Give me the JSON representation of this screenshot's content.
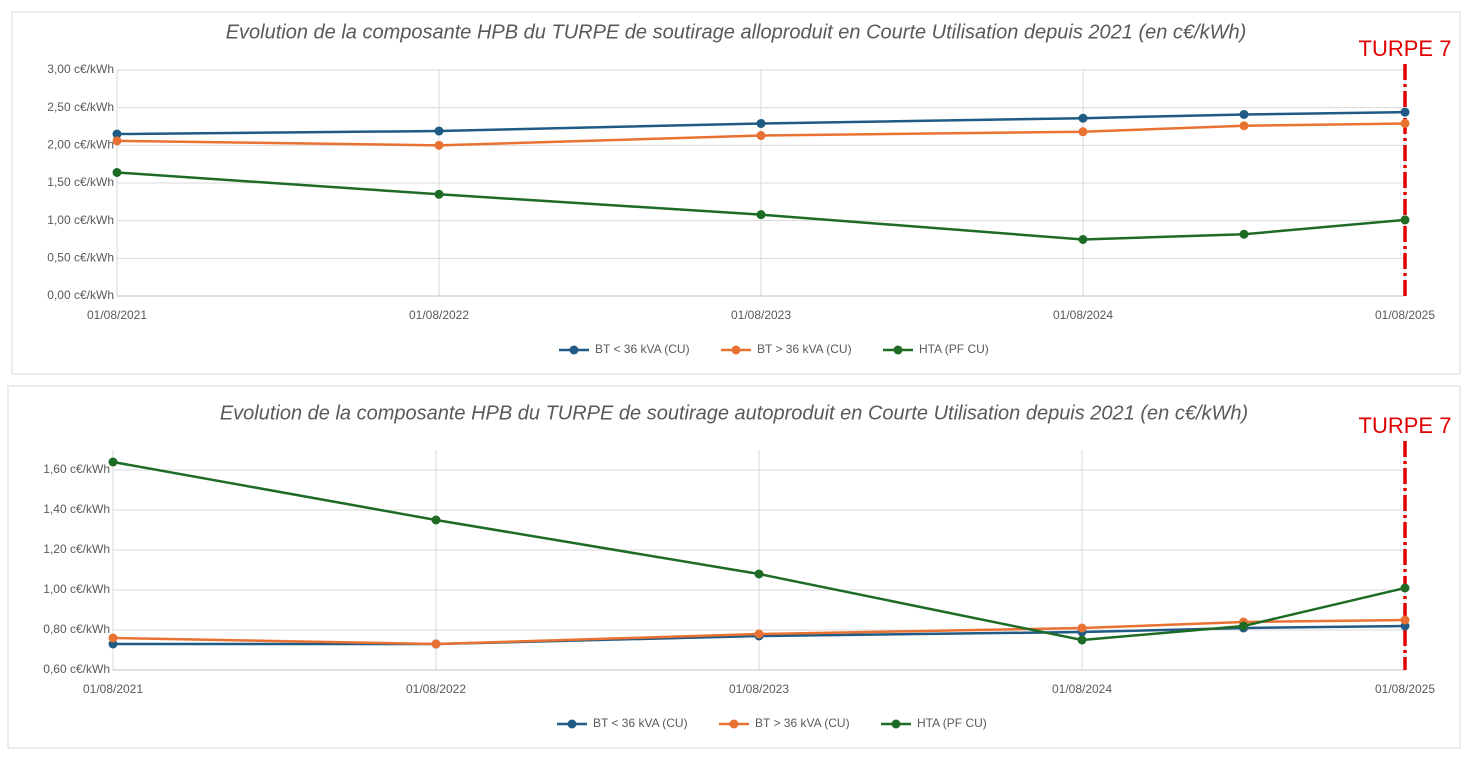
{
  "chart_data": [
    {
      "type": "line",
      "title": "Evolution de la composante HPB du TURPE de soutirage alloproduit en Courte Utilisation depuis 2021 (en c€/kWh)",
      "annotation": "TURPE 7",
      "annotation_color": "#e00000",
      "categories": [
        "01/08/2021",
        "01/08/2022",
        "01/08/2023",
        "01/08/2024",
        null,
        "01/08/2025"
      ],
      "series": [
        {
          "name": "BT < 36 kVA (CU)",
          "color": "#1f5b84",
          "values": [
            2.15,
            2.19,
            2.29,
            2.36,
            2.41,
            2.44
          ]
        },
        {
          "name": "BT > 36 kVA (CU)",
          "color": "#e97132",
          "values": [
            2.06,
            2.0,
            2.13,
            2.18,
            2.26,
            2.29
          ]
        },
        {
          "name": "HTA (PF CU)",
          "color": "#1e6b26",
          "values": [
            1.64,
            1.35,
            1.08,
            0.75,
            0.82,
            1.01
          ]
        }
      ],
      "ylim": [
        0,
        3
      ],
      "yticks": [
        {
          "value": 0,
          "label": "0,00 c€/kWh"
        },
        {
          "value": 0.5,
          "label": "0,50 c€/kWh"
        },
        {
          "value": 1,
          "label": "1,00 c€/kWh"
        },
        {
          "value": 1.5,
          "label": "1,50 c€/kWh"
        },
        {
          "value": 2,
          "label": "2,00 c€/kWh"
        },
        {
          "value": 2.5,
          "label": "2,50 c€/kWh"
        },
        {
          "value": 3,
          "label": "3,00 c€/kWh"
        }
      ],
      "grid": true,
      "legend": "bottom"
    },
    {
      "type": "line",
      "title": "Evolution de la composante HPB du TURPE de soutirage autoproduit en Courte Utilisation depuis 2021 (en c€/kWh)",
      "annotation": "TURPE 7",
      "annotation_color": "#e00000",
      "categories": [
        "01/08/2021",
        "01/08/2022",
        "01/08/2023",
        "01/08/2024",
        null,
        "01/08/2025"
      ],
      "series": [
        {
          "name": "BT < 36 kVA (CU)",
          "color": "#1f5b84",
          "values": [
            0.73,
            0.73,
            0.77,
            0.79,
            0.81,
            0.82
          ]
        },
        {
          "name": "BT > 36 kVA (CU)",
          "color": "#e97132",
          "values": [
            0.76,
            0.73,
            0.78,
            0.81,
            0.84,
            0.85
          ]
        },
        {
          "name": "HTA (PF CU)",
          "color": "#1e6b26",
          "values": [
            1.64,
            1.35,
            1.08,
            0.75,
            0.82,
            1.01
          ]
        }
      ],
      "ylim": [
        0.6,
        1.7
      ],
      "yticks": [
        {
          "value": 0.6,
          "label": "0,60 c€/kWh"
        },
        {
          "value": 0.8,
          "label": "0,80 c€/kWh"
        },
        {
          "value": 1,
          "label": "1,00 c€/kWh"
        },
        {
          "value": 1.2,
          "label": "1,20 c€/kWh"
        },
        {
          "value": 1.4,
          "label": "1,40 c€/kWh"
        },
        {
          "value": 1.6,
          "label": "1,60 c€/kWh"
        }
      ],
      "grid": true,
      "legend": "bottom"
    }
  ]
}
